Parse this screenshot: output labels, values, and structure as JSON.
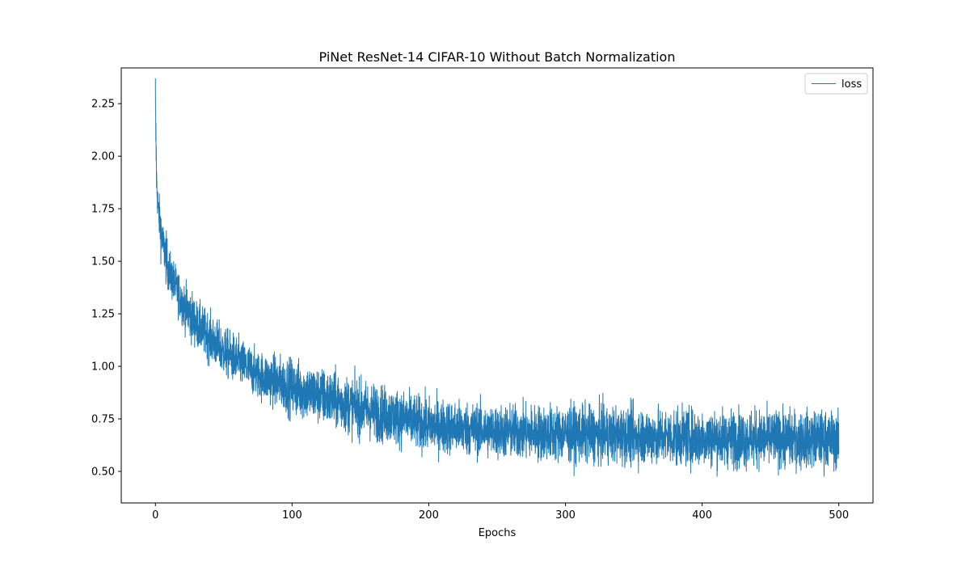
{
  "chart_data": {
    "type": "line",
    "title": "PiNet ResNet-14 CIFAR-10 Without Batch Normalization",
    "xlabel": "Epochs",
    "ylabel": "",
    "xlim": [
      -25,
      525
    ],
    "ylim": [
      0.35,
      2.42
    ],
    "xticks": [
      0,
      100,
      200,
      300,
      400,
      500
    ],
    "yticks": [
      0.5,
      0.75,
      1.0,
      1.25,
      1.5,
      1.75,
      2.0,
      2.25
    ],
    "xtick_labels": [
      "0",
      "100",
      "200",
      "300",
      "400",
      "500"
    ],
    "ytick_labels": [
      "0.50",
      "0.75",
      "1.00",
      "1.25",
      "1.50",
      "1.75",
      "2.00",
      "2.25"
    ],
    "grid": false,
    "legend": {
      "position": "top-right",
      "entries": [
        "loss"
      ]
    },
    "series": [
      {
        "name": "loss",
        "color": "#1f77b4",
        "x_start": 0,
        "x_end": 500,
        "trend": {
          "x": [
            0,
            1,
            2,
            5,
            10,
            20,
            30,
            50,
            75,
            100,
            125,
            150,
            175,
            200,
            250,
            300,
            350,
            400,
            450,
            500
          ],
          "y": [
            2.2,
            1.85,
            1.75,
            1.6,
            1.45,
            1.3,
            1.2,
            1.07,
            0.96,
            0.9,
            0.85,
            0.8,
            0.76,
            0.72,
            0.69,
            0.68,
            0.67,
            0.66,
            0.655,
            0.65
          ]
        },
        "envelope": {
          "x": [
            0,
            5,
            25,
            50,
            100,
            150,
            200,
            300,
            400,
            500
          ],
          "upper": [
            2.37,
            1.75,
            1.5,
            1.4,
            1.2,
            1.18,
            1.0,
            0.95,
            0.96,
            1.01
          ],
          "lower": [
            1.78,
            1.36,
            1.05,
            0.88,
            0.68,
            0.58,
            0.51,
            0.46,
            0.44,
            0.43
          ]
        }
      }
    ]
  }
}
